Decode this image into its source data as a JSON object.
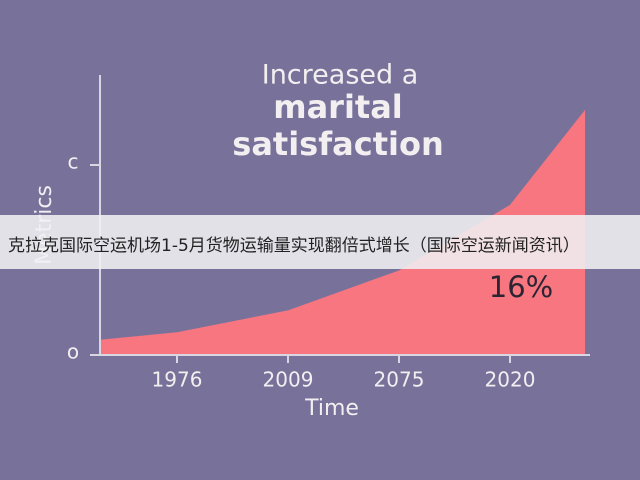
{
  "chart_data": {
    "type": "area",
    "title_lines": [
      "Increased a",
      "marital",
      "satisfaction"
    ],
    "xlabel": "Time",
    "ylabel": "Metrics",
    "annotation": "16%",
    "categories": [
      null,
      "1976",
      "2009",
      "2075",
      "2020",
      null
    ],
    "values": [
      0.16,
      0.24,
      0.47,
      0.89,
      1.58,
      2.58
    ],
    "color": "#f7767f",
    "ylim": [
      0,
      3
    ],
    "yticks": [
      {
        "value": 0,
        "label": "o"
      },
      {
        "value": 2,
        "label": "c"
      }
    ]
  },
  "banner": {
    "text": "克拉克国际空运机场1-5月货物运输量实现翻倍式增长（国际空运新闻资讯）"
  }
}
